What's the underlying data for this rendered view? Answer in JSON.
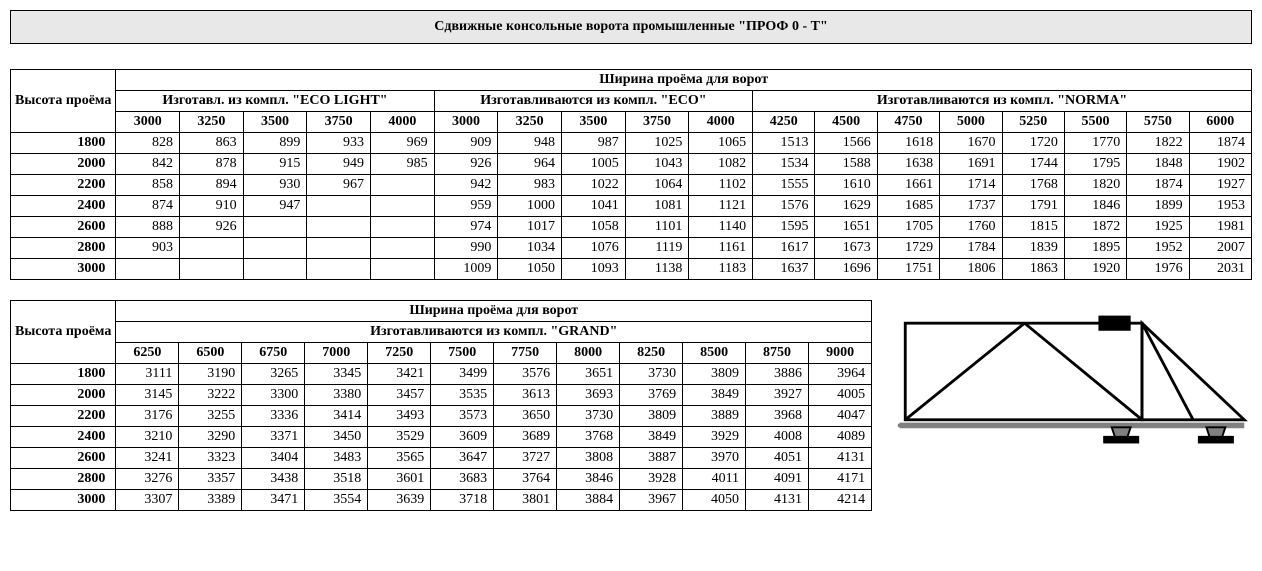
{
  "title": "Сдвижные консольные ворота промышленные \"ПРОФ 0 - Т\"",
  "common": {
    "height_header": "Высота проёма",
    "width_header": "Ширина проёма для ворот"
  },
  "table1": {
    "groups": [
      {
        "label": "Изготавл. из компл. \"ECO LIGHT\"",
        "span": 5
      },
      {
        "label": "Изготавливаются из компл. \"ECO\"",
        "span": 5
      },
      {
        "label": "Изготавливаются из компл. \"NORMA\"",
        "span": 8
      }
    ],
    "widths": [
      "3000",
      "3250",
      "3500",
      "3750",
      "4000",
      "3000",
      "3250",
      "3500",
      "3750",
      "4000",
      "4250",
      "4500",
      "4750",
      "5000",
      "5250",
      "5500",
      "5750",
      "6000"
    ],
    "rows": [
      {
        "h": "1800",
        "v": [
          "828",
          "863",
          "899",
          "933",
          "969",
          "909",
          "948",
          "987",
          "1025",
          "1065",
          "1513",
          "1566",
          "1618",
          "1670",
          "1720",
          "1770",
          "1822",
          "1874"
        ]
      },
      {
        "h": "2000",
        "v": [
          "842",
          "878",
          "915",
          "949",
          "985",
          "926",
          "964",
          "1005",
          "1043",
          "1082",
          "1534",
          "1588",
          "1638",
          "1691",
          "1744",
          "1795",
          "1848",
          "1902"
        ]
      },
      {
        "h": "2200",
        "v": [
          "858",
          "894",
          "930",
          "967",
          "",
          "942",
          "983",
          "1022",
          "1064",
          "1102",
          "1555",
          "1610",
          "1661",
          "1714",
          "1768",
          "1820",
          "1874",
          "1927"
        ]
      },
      {
        "h": "2400",
        "v": [
          "874",
          "910",
          "947",
          "",
          "",
          "959",
          "1000",
          "1041",
          "1081",
          "1121",
          "1576",
          "1629",
          "1685",
          "1737",
          "1791",
          "1846",
          "1899",
          "1953"
        ]
      },
      {
        "h": "2600",
        "v": [
          "888",
          "926",
          "",
          "",
          "",
          "974",
          "1017",
          "1058",
          "1101",
          "1140",
          "1595",
          "1651",
          "1705",
          "1760",
          "1815",
          "1872",
          "1925",
          "1981"
        ]
      },
      {
        "h": "2800",
        "v": [
          "903",
          "",
          "",
          "",
          "",
          "990",
          "1034",
          "1076",
          "1119",
          "1161",
          "1617",
          "1673",
          "1729",
          "1784",
          "1839",
          "1895",
          "1952",
          "2007"
        ]
      },
      {
        "h": "3000",
        "v": [
          "",
          "",
          "",
          "",
          "",
          "1009",
          "1050",
          "1093",
          "1138",
          "1183",
          "1637",
          "1696",
          "1751",
          "1806",
          "1863",
          "1920",
          "1976",
          "2031"
        ]
      }
    ]
  },
  "table2": {
    "group_label": "Изготавливаются из компл. \"GRAND\"",
    "widths": [
      "6250",
      "6500",
      "6750",
      "7000",
      "7250",
      "7500",
      "7750",
      "8000",
      "8250",
      "8500",
      "8750",
      "9000"
    ],
    "rows": [
      {
        "h": "1800",
        "v": [
          "3111",
          "3190",
          "3265",
          "3345",
          "3421",
          "3499",
          "3576",
          "3651",
          "3730",
          "3809",
          "3886",
          "3964"
        ]
      },
      {
        "h": "2000",
        "v": [
          "3145",
          "3222",
          "3300",
          "3380",
          "3457",
          "3535",
          "3613",
          "3693",
          "3769",
          "3849",
          "3927",
          "4005"
        ]
      },
      {
        "h": "2200",
        "v": [
          "3176",
          "3255",
          "3336",
          "3414",
          "3493",
          "3573",
          "3650",
          "3730",
          "3809",
          "3889",
          "3968",
          "4047"
        ]
      },
      {
        "h": "2400",
        "v": [
          "3210",
          "3290",
          "3371",
          "3450",
          "3529",
          "3609",
          "3689",
          "3768",
          "3849",
          "3929",
          "4008",
          "4089"
        ]
      },
      {
        "h": "2600",
        "v": [
          "3241",
          "3323",
          "3404",
          "3483",
          "3565",
          "3647",
          "3727",
          "3808",
          "3887",
          "3970",
          "4051",
          "4131"
        ]
      },
      {
        "h": "2800",
        "v": [
          "3276",
          "3357",
          "3438",
          "3518",
          "3601",
          "3683",
          "3764",
          "3846",
          "3928",
          "4011",
          "4091",
          "4171"
        ]
      },
      {
        "h": "3000",
        "v": [
          "3307",
          "3389",
          "3471",
          "3554",
          "3639",
          "3718",
          "3801",
          "3884",
          "3967",
          "4050",
          "4131",
          "4214"
        ]
      }
    ]
  },
  "diagram": {
    "stroke": "#000000",
    "fill": "#ffffff",
    "motor_fill": "#000000"
  }
}
